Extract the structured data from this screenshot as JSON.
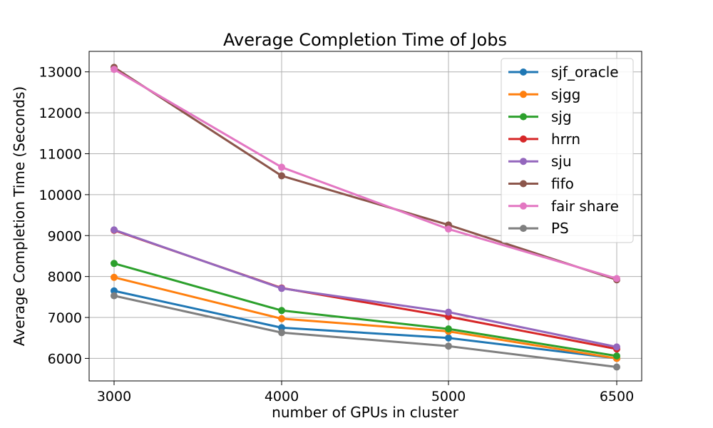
{
  "chart_data": {
    "type": "line",
    "title": "Average Completion Time of Jobs",
    "xlabel": "number of GPUs in cluster",
    "ylabel": "Average Completion Time (Seconds)",
    "x": [
      3000,
      4000,
      5000,
      6500
    ],
    "x_ticks": [
      "3000",
      "4000",
      "5000",
      "6500"
    ],
    "y_ticks": [
      6000,
      7000,
      8000,
      9000,
      10000,
      11000,
      12000,
      13000
    ],
    "ylim": [
      5450,
      13500
    ],
    "grid": true,
    "legend_position": "top-right",
    "series": [
      {
        "name": "sjf_oracle",
        "color": "#1f77b4",
        "values": [
          7650,
          6750,
          6500,
          6000
        ]
      },
      {
        "name": "sjgg",
        "color": "#ff7f0e",
        "values": [
          7980,
          6970,
          6660,
          6000
        ]
      },
      {
        "name": "sjg",
        "color": "#2ca02c",
        "values": [
          8320,
          7170,
          6720,
          6060
        ]
      },
      {
        "name": "hrrn",
        "color": "#d62728",
        "values": [
          9130,
          7720,
          7020,
          6230
        ]
      },
      {
        "name": "sju",
        "color": "#9467bd",
        "values": [
          9140,
          7710,
          7130,
          6280
        ]
      },
      {
        "name": "fifo",
        "color": "#8c564b",
        "values": [
          13110,
          10460,
          9260,
          7920
        ]
      },
      {
        "name": "fair share",
        "color": "#e377c2",
        "values": [
          13060,
          10670,
          9160,
          7950
        ]
      },
      {
        "name": "PS",
        "color": "#7f7f7f",
        "values": [
          7530,
          6630,
          6300,
          5790
        ]
      }
    ]
  }
}
